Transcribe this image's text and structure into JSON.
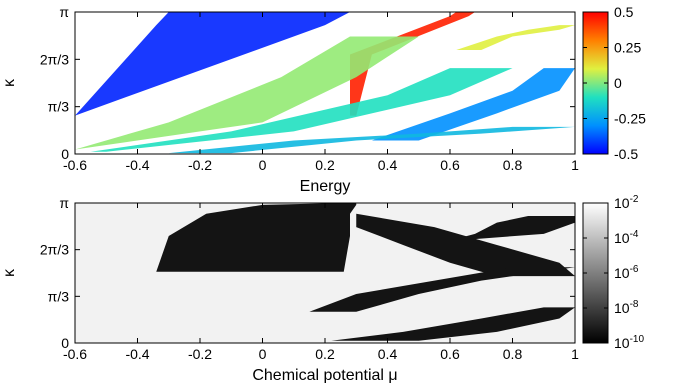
{
  "chart_data": [
    {
      "type": "heatmap",
      "xlabel": "Energy",
      "ylabel": "κ",
      "xlim": [
        -0.6,
        1
      ],
      "ylim": [
        0,
        3.14159
      ],
      "x_ticks": [
        {
          "value": -0.6,
          "label": "-0.6"
        },
        {
          "value": -0.4,
          "label": "-0.4"
        },
        {
          "value": -0.2,
          "label": "-0.2"
        },
        {
          "value": 0,
          "label": "0"
        },
        {
          "value": 0.2,
          "label": "0.2"
        },
        {
          "value": 0.4,
          "label": "0.4"
        },
        {
          "value": 0.6,
          "label": "0.6"
        },
        {
          "value": 0.8,
          "label": "0.8"
        },
        {
          "value": 1,
          "label": "1"
        }
      ],
      "y_ticks": [
        {
          "value": 0,
          "label": "0"
        },
        {
          "value": 1.0472,
          "label": "π/3"
        },
        {
          "value": 2.0944,
          "label": "2π/3"
        },
        {
          "value": 3.14159,
          "label": "π"
        }
      ],
      "colorbar": {
        "range": [
          -0.5,
          0.5
        ],
        "ticks": [
          "0.5",
          "0.25",
          "0",
          "-0.25",
          "-0.5"
        ],
        "colors": [
          "#0000ff",
          "#0090ff",
          "#20e0c0",
          "#e0f040",
          "#ff8000",
          "#ff0000"
        ]
      },
      "bands": [
        {
          "xl": [
            -0.6,
            -0.6,
            -0.34,
            -0.3
          ],
          "xr": [
            -0.6,
            -0.6,
            0.2,
            0.28
          ],
          "y": [
            0.5,
            0.85,
            2.85,
            3.14159
          ],
          "value": -0.45
        },
        {
          "xl": [
            0.28,
            0.28,
            0.6,
            0.62
          ],
          "xr": [
            0.3,
            0.35,
            0.66,
            0.68
          ],
          "y": [
            0.85,
            2.2,
            3.05,
            3.14159
          ],
          "value": 0.45
        },
        {
          "xl": [
            -0.6,
            -0.3,
            0.06,
            0.28
          ],
          "xr": [
            -0.6,
            0.0,
            0.3,
            0.5
          ],
          "y": [
            0.1,
            0.7,
            1.7,
            2.6
          ],
          "value": 0.02
        },
        {
          "xl": [
            -0.55,
            -0.1,
            0.4,
            0.6
          ],
          "xr": [
            -0.5,
            0.1,
            0.6,
            0.8
          ],
          "y": [
            0.05,
            0.5,
            1.3,
            1.9
          ],
          "value": -0.1
        },
        {
          "xl": [
            0.35,
            0.6,
            0.8,
            0.9
          ],
          "xr": [
            0.5,
            0.75,
            0.95,
            1
          ],
          "y": [
            0.3,
            0.9,
            1.4,
            1.9
          ],
          "value": -0.3
        },
        {
          "xl": [
            0.62,
            0.75,
            0.85,
            0.95
          ],
          "xr": [
            0.7,
            0.8,
            0.95,
            1
          ],
          "y": [
            2.3,
            2.6,
            2.75,
            2.85
          ],
          "value": 0.1
        },
        {
          "xl": [
            -0.3,
            0.1,
            0.5,
            0.8
          ],
          "xr": [
            -0.1,
            0.3,
            0.7,
            1
          ],
          "y": [
            0.02,
            0.3,
            0.45,
            0.6
          ],
          "value": -0.2
        }
      ]
    },
    {
      "type": "heatmap",
      "xlabel": "Chemical potential μ",
      "ylabel": "κ",
      "xlim": [
        -0.6,
        1
      ],
      "ylim": [
        0,
        3.14159
      ],
      "x_ticks": [
        {
          "value": -0.6,
          "label": "-0.6"
        },
        {
          "value": -0.4,
          "label": "-0.4"
        },
        {
          "value": -0.2,
          "label": "-0.2"
        },
        {
          "value": 0,
          "label": "0"
        },
        {
          "value": 0.2,
          "label": "0.2"
        },
        {
          "value": 0.4,
          "label": "0.4"
        },
        {
          "value": 0.6,
          "label": "0.6"
        },
        {
          "value": 0.8,
          "label": "0.8"
        },
        {
          "value": 1,
          "label": "1"
        }
      ],
      "y_ticks": [
        {
          "value": 0,
          "label": "0"
        },
        {
          "value": 1.0472,
          "label": "π/3"
        },
        {
          "value": 2.0944,
          "label": "2π/3"
        },
        {
          "value": 3.14159,
          "label": "π"
        }
      ],
      "colorbar": {
        "scale": "log",
        "range": [
          1e-10,
          1
        ],
        "ticks": [
          {
            "base": "10",
            "exp": "-2"
          },
          {
            "base": "10",
            "exp": "-4"
          },
          {
            "base": "10",
            "exp": "-6"
          },
          {
            "base": "10",
            "exp": "-8"
          },
          {
            "base": "10",
            "exp": "-10"
          }
        ],
        "colors": [
          "#000000",
          "#ffffff"
        ]
      },
      "dark_regions": [
        {
          "xl": [
            -0.34,
            -0.3,
            -0.18,
            0.0,
            0.26
          ],
          "xr": [
            0.26,
            0.28,
            0.28,
            0.3,
            0.3
          ],
          "y": [
            1.6,
            2.4,
            2.9,
            3.1,
            3.14159
          ]
        },
        {
          "xl": [
            0.3,
            0.3,
            0.45,
            0.6,
            0.75
          ],
          "xr": [
            0.3,
            0.55,
            0.75,
            0.95,
            1
          ],
          "y": [
            2.9,
            2.6,
            2.2,
            1.8,
            1.5
          ]
        },
        {
          "xl": [
            0.6,
            0.68,
            0.75,
            0.85
          ],
          "xr": [
            0.62,
            0.9,
            1,
            1
          ],
          "y": [
            2.3,
            2.45,
            2.7,
            2.85
          ]
        },
        {
          "xl": [
            0.22,
            0.45,
            0.7,
            0.9
          ],
          "xr": [
            0.5,
            0.75,
            0.95,
            1
          ],
          "y": [
            0.05,
            0.25,
            0.55,
            0.8
          ]
        },
        {
          "xl": [
            0.15,
            0.3,
            0.55,
            0.8
          ],
          "xr": [
            0.3,
            0.5,
            0.7,
            1
          ],
          "y": [
            0.7,
            1.1,
            1.4,
            1.7
          ]
        }
      ]
    }
  ]
}
